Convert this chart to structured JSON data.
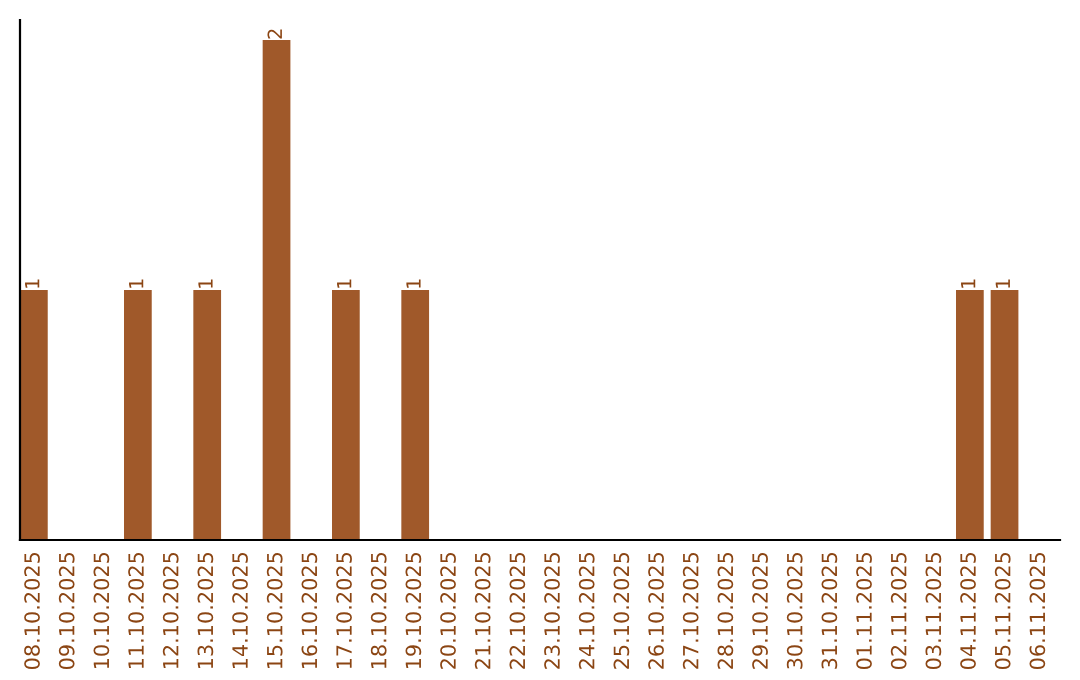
{
  "chart_data": {
    "type": "bar",
    "categories": [
      "08.10.2025",
      "09.10.2025",
      "10.10.2025",
      "11.10.2025",
      "12.10.2025",
      "13.10.2025",
      "14.10.2025",
      "15.10.2025",
      "16.10.2025",
      "17.10.2025",
      "18.10.2025",
      "19.10.2025",
      "20.10.2025",
      "21.10.2025",
      "22.10.2025",
      "23.10.2025",
      "24.10.2025",
      "25.10.2025",
      "26.10.2025",
      "27.10.2025",
      "28.10.2025",
      "29.10.2025",
      "30.10.2025",
      "31.10.2025",
      "01.11.2025",
      "02.11.2025",
      "03.11.2025",
      "04.11.2025",
      "05.11.2025",
      "06.11.2025"
    ],
    "values": [
      1,
      0,
      0,
      1,
      0,
      1,
      0,
      2,
      0,
      1,
      0,
      1,
      0,
      0,
      0,
      0,
      0,
      0,
      0,
      0,
      0,
      0,
      0,
      0,
      0,
      0,
      0,
      1,
      1,
      0
    ],
    "value_labels": [
      "1",
      null,
      null,
      "1",
      null,
      "1",
      null,
      "2",
      null,
      "1",
      null,
      "1",
      null,
      null,
      null,
      null,
      null,
      null,
      null,
      null,
      null,
      null,
      null,
      null,
      null,
      null,
      null,
      "1",
      "1",
      null
    ],
    "color": "#a0592a",
    "grid": false,
    "legend": false
  }
}
